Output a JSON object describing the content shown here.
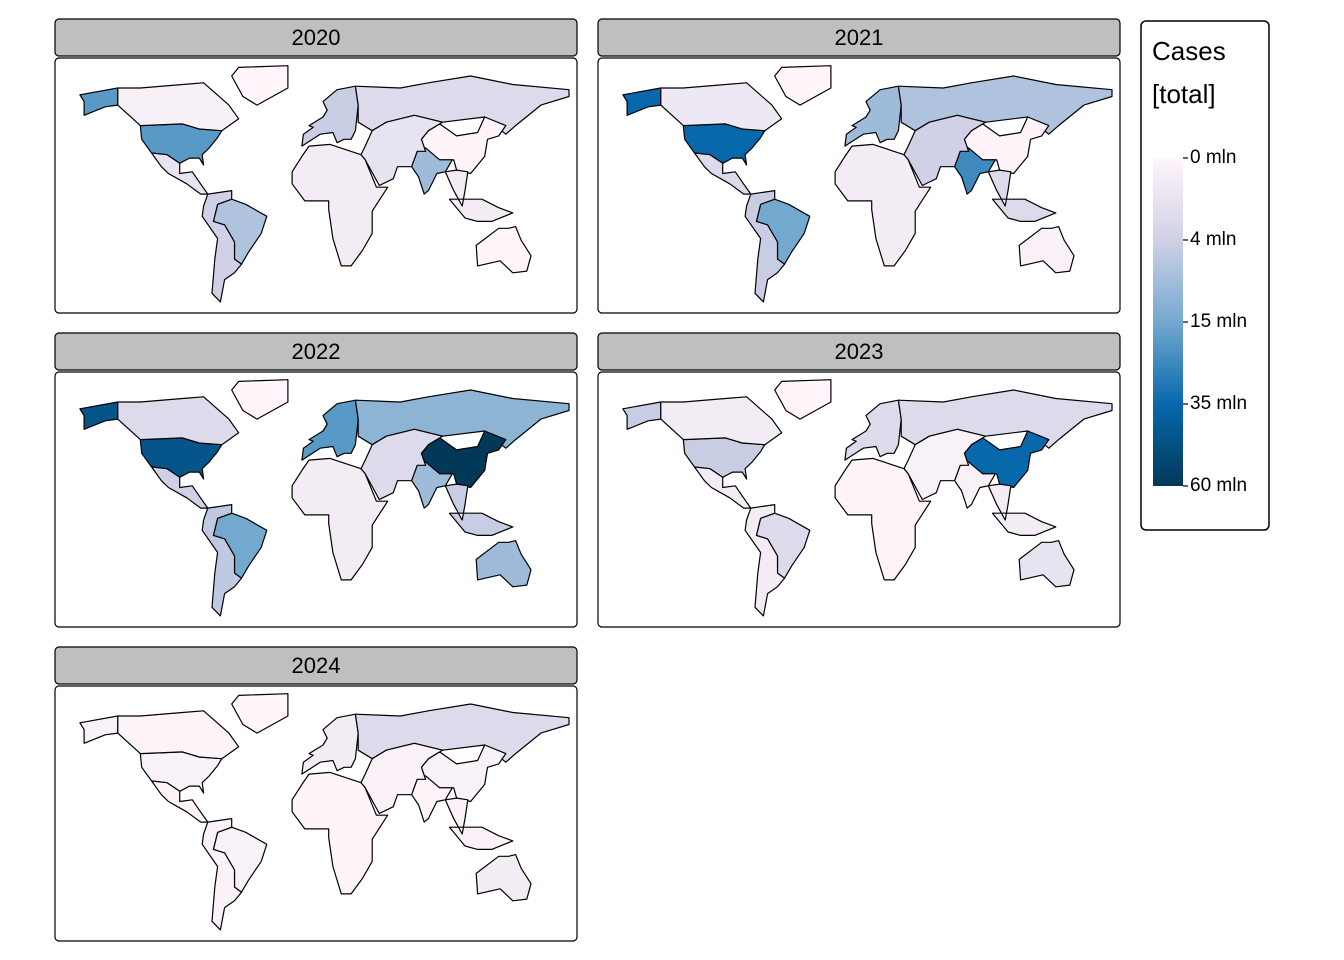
{
  "chart_data": {
    "type": "choropleth",
    "legend": {
      "title": "Cases",
      "subtitle": "[total]",
      "ticks": [
        {
          "value": 0,
          "label": "0 mln"
        },
        {
          "value": 4,
          "label": "4 mln"
        },
        {
          "value": 15,
          "label": "15 mln"
        },
        {
          "value": 35,
          "label": "35 mln"
        },
        {
          "value": 60,
          "label": "60 mln"
        }
      ],
      "palette": [
        "#fff5fa",
        "#d0d1e6",
        "#74a9cf",
        "#0868ac",
        "#023858"
      ]
    },
    "panels": [
      {
        "title": "2020",
        "values": [
          20,
          0.6,
          2,
          8,
          4,
          0,
          5,
          3,
          0.1,
          10,
          2,
          1,
          1,
          0.03
        ]
      },
      {
        "title": "2021",
        "values": [
          35,
          1.5,
          3,
          15,
          5,
          0,
          10,
          8,
          0.1,
          25,
          4,
          1,
          3,
          0.4
        ]
      },
      {
        "title": "2022",
        "values": [
          45,
          3,
          4,
          15,
          6,
          0,
          20,
          12,
          60,
          10,
          3,
          1,
          5,
          10
        ]
      },
      {
        "title": "2023",
        "values": [
          5,
          1,
          1,
          3,
          1,
          0,
          3,
          3,
          35,
          0.5,
          0.5,
          0.2,
          1,
          2
        ]
      },
      {
        "title": "2024",
        "values": [
          0.5,
          0.2,
          0.2,
          0.5,
          0.3,
          0,
          1,
          3,
          0.5,
          0.2,
          0.3,
          0.1,
          0.3,
          1
        ]
      }
    ]
  }
}
